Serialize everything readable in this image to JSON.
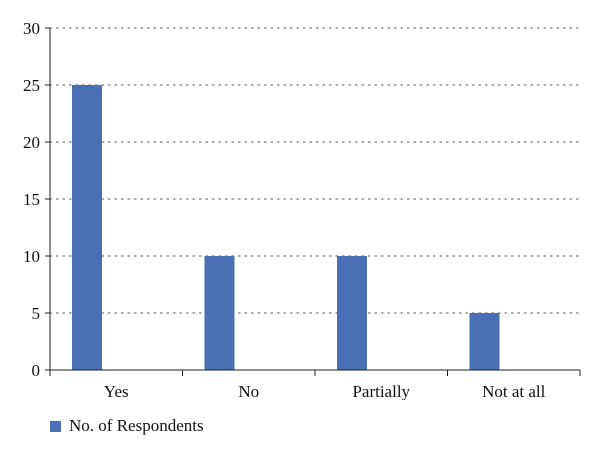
{
  "chart_data": {
    "type": "bar",
    "categories": [
      "Yes",
      "No",
      "Partially",
      "Not at all"
    ],
    "series": [
      {
        "name": "No. of Respondents",
        "values": [
          25,
          10,
          10,
          5
        ]
      }
    ],
    "title": "",
    "xlabel": "",
    "ylabel": "",
    "ylim": [
      0,
      30
    ],
    "yticks": [
      0,
      5,
      10,
      15,
      20,
      25,
      30
    ],
    "grid": "dotted horizontal",
    "legend_position": "bottom-left",
    "colors": {
      "bar": "#4a6fb5",
      "axis": "#222222",
      "grid": "#777777"
    }
  }
}
